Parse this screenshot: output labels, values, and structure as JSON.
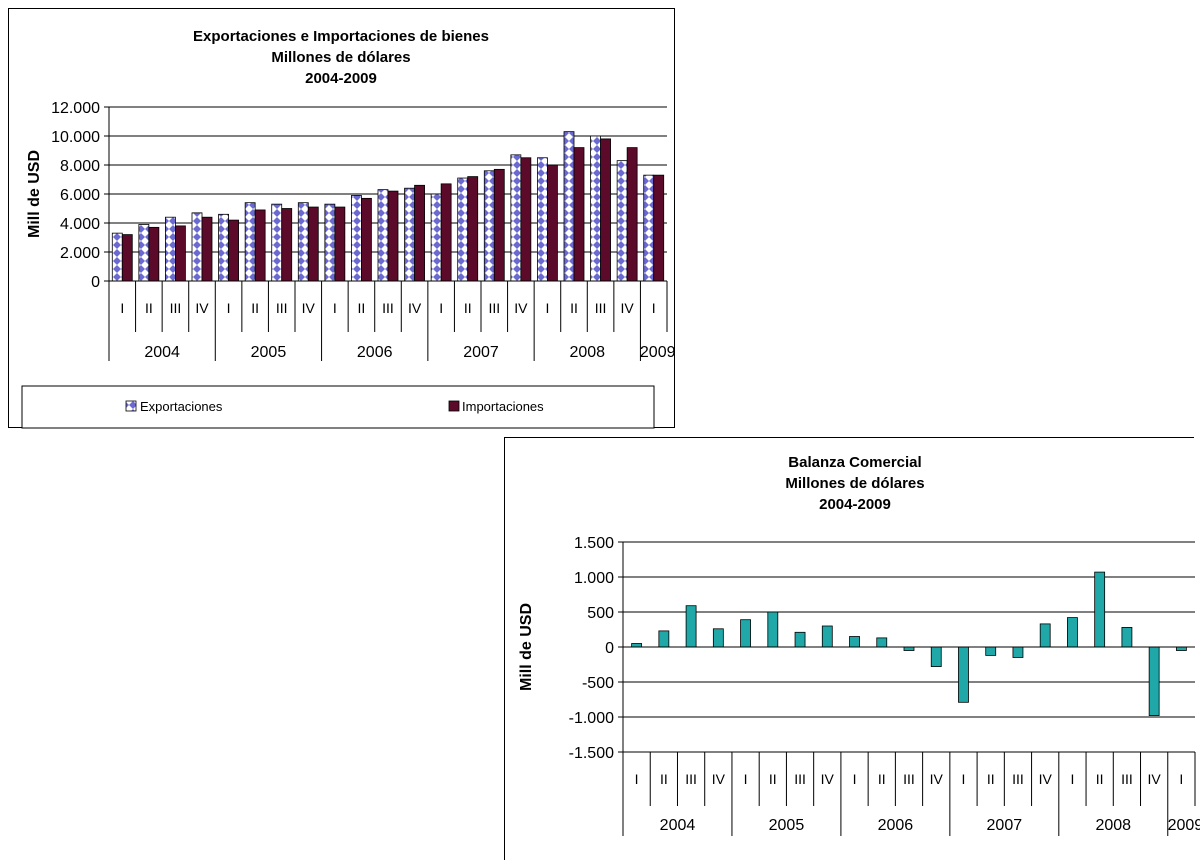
{
  "chart_data": [
    {
      "type": "bar",
      "title_lines": [
        "Exportaciones e Importaciones de bienes",
        "Millones de dólares",
        "2004-2009"
      ],
      "ylabel": "Mill de USD",
      "ylim": [
        0,
        12000
      ],
      "yticks": [
        0,
        2000,
        4000,
        6000,
        8000,
        10000,
        12000
      ],
      "ytick_labels": [
        "0",
        "2.000",
        "4.000",
        "6.000",
        "8.000",
        "10.000",
        "12.000"
      ],
      "grid": true,
      "legend": "bottom",
      "categories": [
        "I",
        "II",
        "III",
        "IV",
        "I",
        "II",
        "III",
        "IV",
        "I",
        "II",
        "III",
        "IV",
        "I",
        "II",
        "III",
        "IV",
        "I",
        "II",
        "III",
        "IV",
        "I"
      ],
      "years": [
        {
          "label": "2004",
          "quarters": 4
        },
        {
          "label": "2005",
          "quarters": 4
        },
        {
          "label": "2006",
          "quarters": 4
        },
        {
          "label": "2007",
          "quarters": 4
        },
        {
          "label": "2008",
          "quarters": 4
        },
        {
          "label": "2009",
          "quarters": 1
        }
      ],
      "series": [
        {
          "name": "Exportaciones",
          "color": "#ffffff",
          "pattern_color": "#6a6ad0",
          "values": [
            3300,
            3900,
            4400,
            4700,
            4600,
            5400,
            5300,
            5400,
            5300,
            5900,
            6300,
            6400,
            6000,
            7100,
            7600,
            8700,
            8500,
            10300,
            10000,
            8300,
            7300
          ]
        },
        {
          "name": "Importaciones",
          "color": "#5c0a2a",
          "values": [
            3200,
            3700,
            3800,
            4400,
            4200,
            4900,
            5000,
            5100,
            5100,
            5700,
            6200,
            6600,
            6700,
            7200,
            7700,
            8500,
            8000,
            9200,
            9800,
            9200,
            7300
          ]
        }
      ]
    },
    {
      "type": "bar",
      "title_lines": [
        "Balanza Comercial",
        "Millones de dólares",
        "2004-2009"
      ],
      "ylabel": "Mill de USD",
      "ylim": [
        -1500,
        1500
      ],
      "yticks": [
        -1500,
        -1000,
        -500,
        0,
        500,
        1000,
        1500
      ],
      "ytick_labels": [
        "-1.500",
        "-1.000",
        "-500",
        "0",
        "500",
        "1.000",
        "1.500"
      ],
      "grid": true,
      "categories": [
        "I",
        "II",
        "III",
        "IV",
        "I",
        "II",
        "III",
        "IV",
        "I",
        "II",
        "III",
        "IV",
        "I",
        "II",
        "III",
        "IV",
        "I",
        "II",
        "III",
        "IV",
        "I"
      ],
      "years": [
        {
          "label": "2004",
          "quarters": 4
        },
        {
          "label": "2005",
          "quarters": 4
        },
        {
          "label": "2006",
          "quarters": 4
        },
        {
          "label": "2007",
          "quarters": 4
        },
        {
          "label": "2008",
          "quarters": 4
        },
        {
          "label": "2009",
          "quarters": 1
        }
      ],
      "series": [
        {
          "color": "#20a8a8",
          "values": [
            50,
            230,
            590,
            260,
            390,
            500,
            210,
            300,
            150,
            130,
            -50,
            -280,
            -790,
            -120,
            -150,
            330,
            420,
            1070,
            280,
            -980,
            -50
          ]
        }
      ]
    }
  ]
}
